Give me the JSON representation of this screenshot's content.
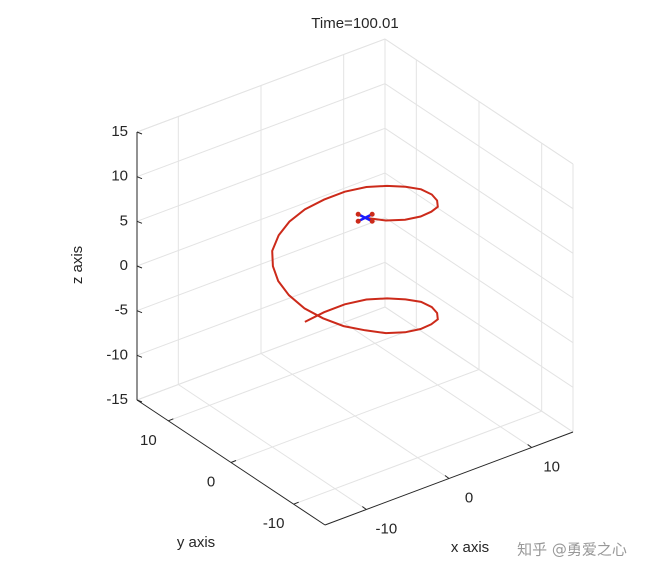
{
  "chart_data": {
    "type": "line3d",
    "title": "Time=100.01",
    "xlabel": "x axis",
    "ylabel": "y axis",
    "zlabel": "z axis",
    "xlim": [
      -15,
      15
    ],
    "ylim": [
      -15,
      15
    ],
    "zlim": [
      -15,
      15
    ],
    "xticks": [
      -10,
      0,
      10
    ],
    "yticks": [
      -10,
      0,
      10
    ],
    "zticks": [
      -15,
      -10,
      -5,
      0,
      5,
      10,
      15
    ],
    "grid": true,
    "series": [
      {
        "color": "#cc2a1a",
        "x": [
          0,
          2.1,
          4,
          5.7,
          6.9,
          7.7,
          8,
          7.7,
          6.9,
          5.7,
          4,
          2.1,
          0,
          -2.1,
          -4,
          -5.7,
          -6.9,
          -7.7,
          -8,
          -7.7,
          -6.9,
          -5.7,
          -4,
          -2.1,
          0,
          2.1,
          4,
          5.7,
          6.9,
          7.7,
          8,
          7.7,
          6.9,
          5.7,
          4,
          2.1,
          0,
          -2.1,
          -4
        ],
        "y": [
          8,
          7.7,
          6.9,
          5.7,
          4,
          2.1,
          0,
          -2.1,
          -4,
          -5.7,
          -6.9,
          -7.7,
          -8,
          -7.7,
          -6.9,
          -5.7,
          -4,
          -2.1,
          0,
          2.1,
          4,
          5.7,
          6.9,
          7.7,
          8,
          7.7,
          6.9,
          5.7,
          4,
          2.1,
          0,
          -2.1,
          -4,
          -5.7,
          -6.9,
          -7.7,
          -8,
          -7.7,
          -6.9
        ],
        "z": [
          -8.2,
          -7.7,
          -7.1,
          -6.6,
          -6.1,
          -5.6,
          -5.0,
          -4.5,
          -4.0,
          -3.5,
          -2.9,
          -2.4,
          -1.9,
          -1.4,
          -0.8,
          -0.3,
          0.2,
          0.7,
          1.3,
          1.8,
          2.3,
          2.8,
          3.4,
          3.9,
          4.4,
          4.9,
          5.5,
          6.0,
          6.5,
          7.0,
          7.6,
          8.1,
          8.6,
          9.1,
          9.7,
          10.2,
          10.7,
          11.2,
          11.8
        ]
      }
    ],
    "vehicle_color": "#1a1aff",
    "watermark": "知乎 @勇爱之心"
  }
}
